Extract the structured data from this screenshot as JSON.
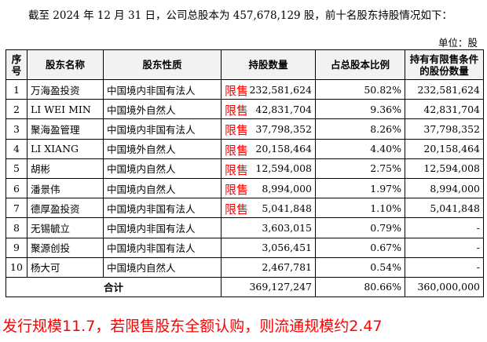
{
  "intro_text": "截至 2024 年 12 月 31 日，公司总股本为 457,678,129 股，前十名股东持股情况如下：",
  "unit_label": "单位：股",
  "table": {
    "headers": [
      "序号",
      "股东名称",
      "股东性质",
      "持股数量",
      "占总股本比例",
      "持有有限售条件的股份数量"
    ],
    "rows": [
      {
        "idx": "1",
        "name": "万海盈投资",
        "nature": "中国境内非国有法人",
        "tag": "限售",
        "shares": "232,581,624",
        "ratio": "50.82%",
        "restricted": "232,581,624"
      },
      {
        "idx": "2",
        "name": "LI WEI MIN",
        "nature": "中国境外自然人",
        "tag": "限售",
        "shares": "42,831,704",
        "ratio": "9.36%",
        "restricted": "42,831,704"
      },
      {
        "idx": "3",
        "name": "聚海盈管理",
        "nature": "中国境内非国有法人",
        "tag": "限售",
        "shares": "37,798,352",
        "ratio": "8.26%",
        "restricted": "37,798,352"
      },
      {
        "idx": "4",
        "name": "LI XIANG",
        "nature": "中国境外自然人",
        "tag": "限售",
        "shares": "20,158,464",
        "ratio": "4.40%",
        "restricted": "20,158,464"
      },
      {
        "idx": "5",
        "name": "胡彬",
        "nature": "中国境内自然人",
        "tag": "限售",
        "shares": "12,594,008",
        "ratio": "2.75%",
        "restricted": "12,594,008"
      },
      {
        "idx": "6",
        "name": "潘景伟",
        "nature": "中国境内自然人",
        "tag": "限售",
        "shares": "8,994,000",
        "ratio": "1.97%",
        "restricted": "8,994,000"
      },
      {
        "idx": "7",
        "name": "德厚盈投资",
        "nature": "中国境内非国有法人",
        "tag": "限售",
        "shares": "5,041,848",
        "ratio": "1.10%",
        "restricted": "5,041,848"
      },
      {
        "idx": "8",
        "name": "无锡毓立",
        "nature": "中国境内非国有法人",
        "tag": "",
        "shares": "3,603,015",
        "ratio": "0.79%",
        "restricted": "-"
      },
      {
        "idx": "9",
        "name": "聚源创投",
        "nature": "中国境内非国有法人",
        "tag": "",
        "shares": "3,056,451",
        "ratio": "0.67%",
        "restricted": "-"
      },
      {
        "idx": "10",
        "name": "杨大可",
        "nature": "中国境内自然人",
        "tag": "",
        "shares": "2,467,781",
        "ratio": "0.54%",
        "restricted": "-"
      }
    ],
    "total": {
      "label": "合计",
      "shares": "369,127,247",
      "ratio": "80.66%",
      "restricted": "360,000,000"
    }
  },
  "annotation": "发行规模11.7，若限售股东全额认购，则流通规模约2.47",
  "colors": {
    "annotation": "#ff0000",
    "header_bg": "#f2f2f2"
  }
}
